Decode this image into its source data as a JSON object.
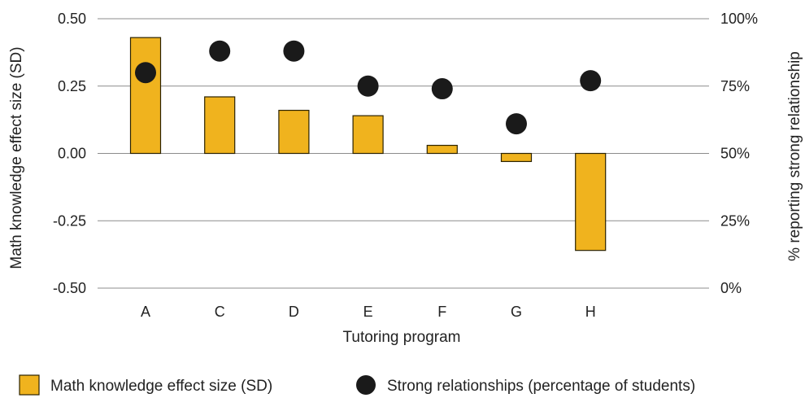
{
  "chart_data": {
    "type": "bar",
    "categories": [
      "A",
      "C",
      "D",
      "E",
      "F",
      "G",
      "H"
    ],
    "series": [
      {
        "name": "Math knowledge effect size (SD)",
        "type": "bar",
        "axis": "left",
        "values": [
          0.43,
          0.21,
          0.16,
          0.14,
          0.03,
          -0.03,
          -0.36
        ]
      },
      {
        "name": "Strong relationships (percentage of students)",
        "type": "scatter",
        "axis": "right",
        "values": [
          80,
          88,
          88,
          75,
          74,
          61,
          77
        ]
      }
    ],
    "xlabel": "Tutoring program",
    "ylabel": "Math knowledge effect size (SD)",
    "y2label": "% reporting strong relationship",
    "ylim": [
      -0.5,
      0.5
    ],
    "y2lim": [
      0,
      100
    ],
    "yticks": [
      {
        "value": 0.5,
        "label": "0.50"
      },
      {
        "value": 0.25,
        "label": "0.25"
      },
      {
        "value": 0,
        "label": "0.00"
      },
      {
        "value": -0.25,
        "label": "-0.25"
      },
      {
        "value": -0.5,
        "label": "-0.50"
      }
    ],
    "y2ticks": [
      {
        "value": 100,
        "label": "100%"
      },
      {
        "value": 75,
        "label": "75%"
      },
      {
        "value": 50,
        "label": "50%"
      },
      {
        "value": 25,
        "label": "25%"
      },
      {
        "value": 0,
        "label": "0%"
      }
    ],
    "grid": true,
    "legend": "bottom",
    "colors": {
      "bar": "#F0B31E",
      "bar_edge": "#2B2200",
      "dot": "#1A1A1A",
      "grid": "#8C8C8C",
      "text": "#222222"
    }
  }
}
